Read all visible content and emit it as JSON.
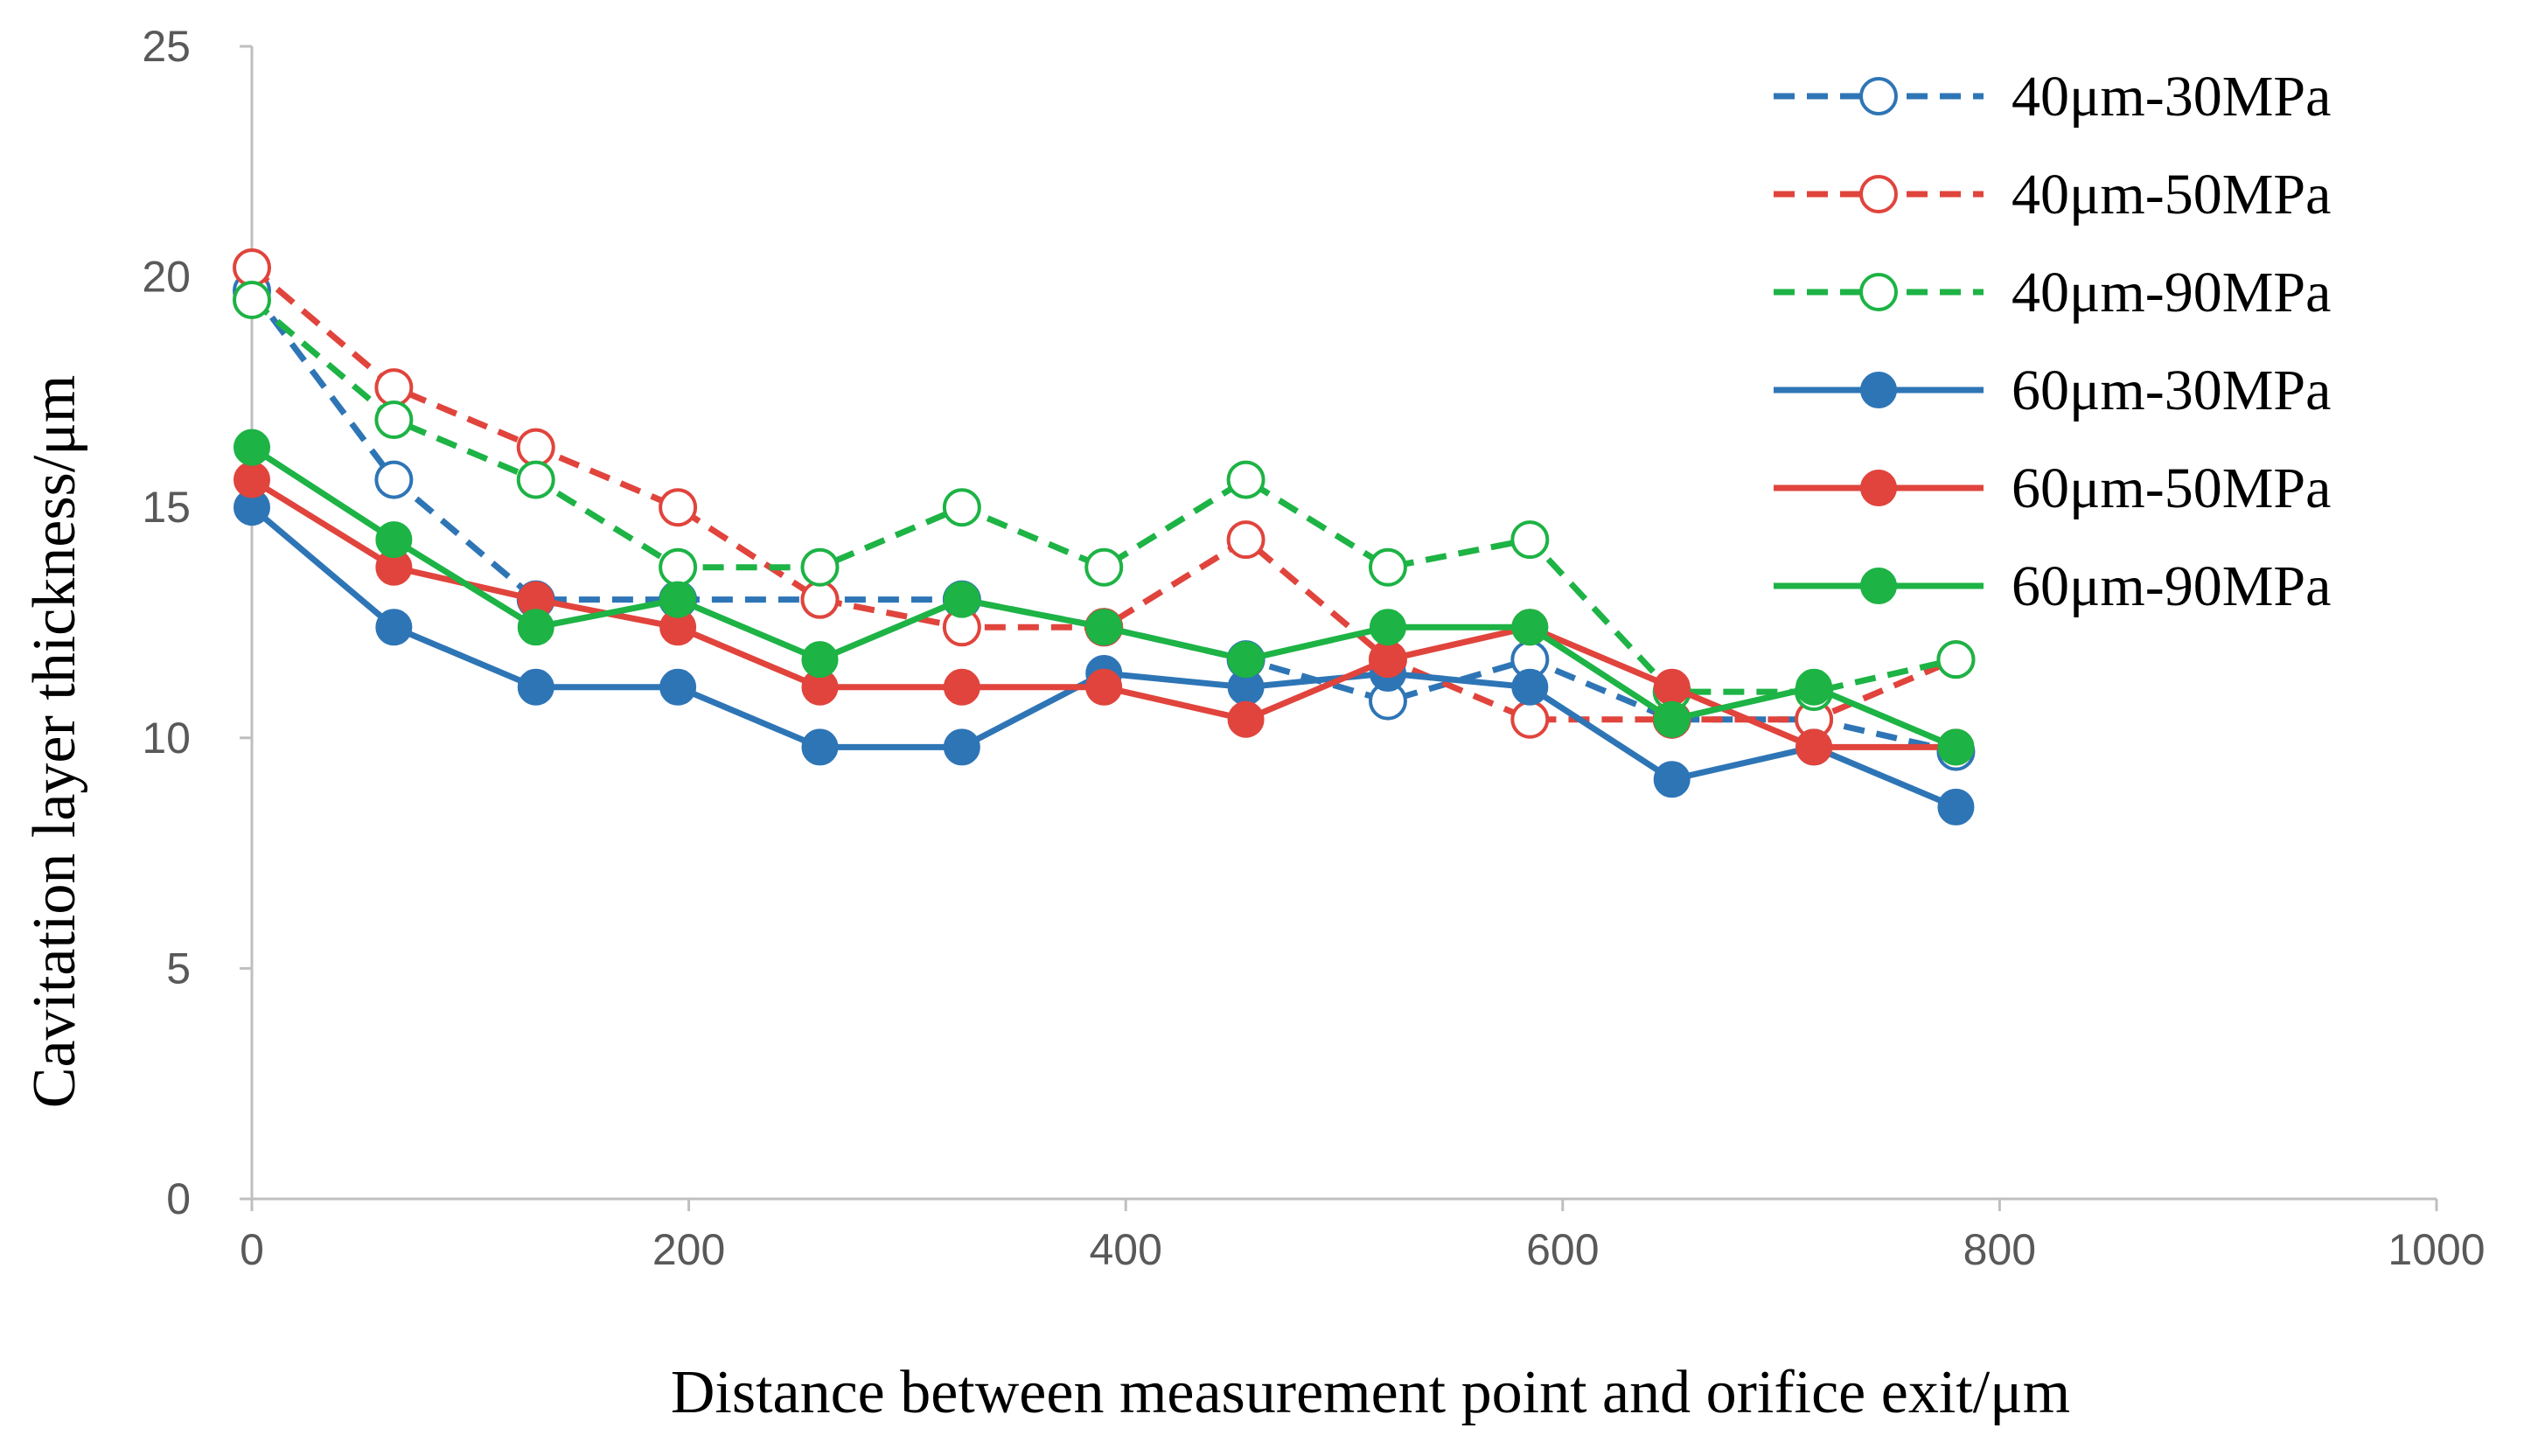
{
  "chart_data": {
    "type": "line",
    "title": "",
    "xlabel": "Distance between measurement point and orifice exit/μm",
    "ylabel": "Cavitation layer thickness/μm",
    "xlim": [
      0,
      1000
    ],
    "ylim": [
      0,
      25
    ],
    "xticks": [
      "0",
      "200",
      "400",
      "600",
      "800",
      "1000"
    ],
    "yticks": [
      "0",
      "5",
      "10",
      "15",
      "20",
      "25"
    ],
    "grid": false,
    "legend_position": "top-right",
    "x": [
      0,
      65,
      130,
      195,
      260,
      325,
      390,
      455,
      520,
      585,
      650,
      715,
      780
    ],
    "series": [
      {
        "name": "40μm-30MPa",
        "color": "#2E75B6",
        "style": "dashed",
        "marker": "open",
        "values": [
          19.7,
          15.6,
          13.0,
          13.0,
          13.0,
          13.0,
          12.4,
          11.7,
          10.8,
          11.7,
          10.4,
          10.4,
          9.7
        ]
      },
      {
        "name": "40μm-50MPa",
        "color": "#E0443C",
        "style": "dashed",
        "marker": "open",
        "values": [
          20.2,
          17.6,
          16.3,
          15.0,
          13.0,
          12.4,
          12.4,
          14.3,
          11.7,
          10.4,
          10.4,
          10.4,
          11.7
        ]
      },
      {
        "name": "40μm-90MPa",
        "color": "#1DB345",
        "style": "dashed",
        "marker": "open",
        "values": [
          19.5,
          16.9,
          15.6,
          13.7,
          13.7,
          15.0,
          13.7,
          15.6,
          13.7,
          14.3,
          11.0,
          11.0,
          11.7
        ]
      },
      {
        "name": "60μm-30MPa",
        "color": "#2E75B6",
        "style": "solid",
        "marker": "filled",
        "values": [
          15.0,
          12.4,
          11.1,
          11.1,
          9.8,
          9.8,
          11.4,
          11.1,
          11.4,
          11.1,
          9.1,
          9.8,
          8.5
        ]
      },
      {
        "name": "60μm-50MPa",
        "color": "#E0443C",
        "style": "solid",
        "marker": "filled",
        "values": [
          15.6,
          13.7,
          13.0,
          12.4,
          11.1,
          11.1,
          11.1,
          10.4,
          11.7,
          12.4,
          11.1,
          9.8,
          9.8
        ]
      },
      {
        "name": "60μm-90MPa",
        "color": "#1DB345",
        "style": "solid",
        "marker": "filled",
        "values": [
          16.3,
          14.3,
          12.4,
          13.0,
          11.7,
          13.0,
          12.4,
          11.7,
          12.4,
          12.4,
          10.4,
          11.1,
          9.8
        ]
      }
    ]
  }
}
